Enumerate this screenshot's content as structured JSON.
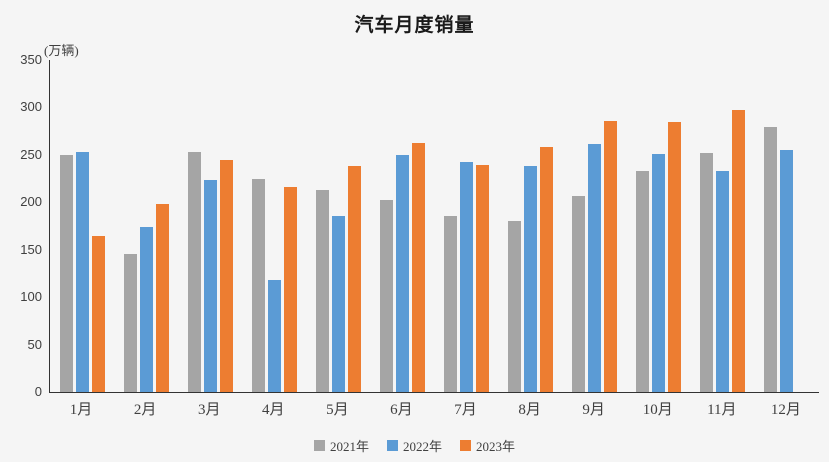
{
  "title": "汽车月度销量",
  "unit_label": "(万辆)",
  "colors": {
    "background": "#f5f5f5",
    "axis": "#333333",
    "text": "#404040",
    "series_2021": "#a5a5a5",
    "series_2022": "#5b9bd5",
    "series_2023": "#ed7d31"
  },
  "chart_data": {
    "type": "bar",
    "title": "汽车月度销量",
    "ylabel": "(万辆)",
    "xlabel": "",
    "ylim": [
      0,
      350
    ],
    "y_ticks": [
      0,
      50,
      100,
      150,
      200,
      250,
      300,
      350
    ],
    "grid": false,
    "legend_position": "bottom",
    "categories": [
      "1月",
      "2月",
      "3月",
      "4月",
      "5月",
      "6月",
      "7月",
      "8月",
      "9月",
      "10月",
      "11月",
      "12月"
    ],
    "series": [
      {
        "name": "2021年",
        "color": "#a5a5a5",
        "values": [
          250,
          146,
          253,
          225,
          213,
          202,
          186,
          180,
          207,
          233,
          252,
          279
        ]
      },
      {
        "name": "2022年",
        "color": "#5b9bd5",
        "values": [
          253,
          174,
          223,
          118,
          186,
          250,
          242,
          238,
          261,
          251,
          233,
          255
        ]
      },
      {
        "name": "2023年",
        "color": "#ed7d31",
        "values": [
          165,
          198,
          245,
          216,
          238,
          262,
          239,
          258,
          286,
          285,
          297,
          null
        ]
      }
    ]
  }
}
